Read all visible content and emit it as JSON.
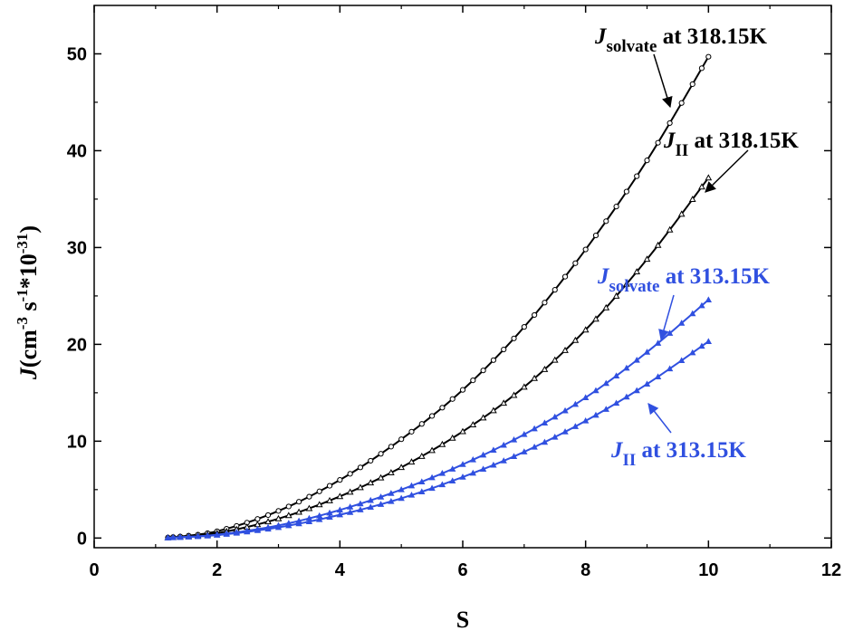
{
  "chart_data": {
    "type": "line",
    "title": "",
    "xlabel": "S",
    "ylabel": {
      "main": "J",
      "units_open": "(cm",
      "exp1": "-3",
      "mid1": " s",
      "exp2": "-1",
      "mid2": "*10",
      "exp3": "-31",
      "units_close": ")"
    },
    "xlim": [
      0,
      12
    ],
    "ylim": [
      -1,
      55
    ],
    "xticks": [
      0,
      2,
      4,
      6,
      8,
      10,
      12
    ],
    "yticks": [
      0,
      10,
      20,
      30,
      40,
      50
    ],
    "grid": false,
    "legend": "none",
    "series": [
      {
        "id": "solvate_318",
        "color": "#000000",
        "marker": "circle-open",
        "x": [
          1.2,
          2,
          3,
          4,
          5,
          6,
          7,
          8,
          9,
          10
        ],
        "y": [
          0.05,
          0.7,
          2.8,
          6.0,
          10.2,
          15.3,
          21.8,
          29.8,
          39.0,
          49.7
        ]
      },
      {
        "id": "II_318",
        "color": "#000000",
        "marker": "triangle-open",
        "x": [
          1.2,
          2,
          3,
          4,
          5,
          6,
          7,
          8,
          9,
          10
        ],
        "y": [
          0.04,
          0.5,
          2.0,
          4.3,
          7.3,
          11.0,
          15.6,
          21.5,
          28.8,
          37.2
        ]
      },
      {
        "id": "solvate_313",
        "color": "#3050e0",
        "marker": "triangle-filled",
        "x": [
          1.2,
          2,
          3,
          4,
          5,
          6,
          7,
          8,
          9,
          10
        ],
        "y": [
          0.03,
          0.35,
          1.3,
          2.9,
          5.0,
          7.6,
          10.7,
          14.5,
          19.2,
          24.6
        ]
      },
      {
        "id": "II_313",
        "color": "#3050e0",
        "marker": "triangle-filled",
        "x": [
          1.2,
          2,
          3,
          4,
          5,
          6,
          7,
          8,
          9,
          10
        ],
        "y": [
          0.02,
          0.3,
          1.1,
          2.4,
          4.1,
          6.3,
          8.9,
          12.1,
          15.9,
          20.3
        ]
      }
    ],
    "annotations": [
      {
        "id": "solvate_318",
        "main": "J",
        "sub": "solvate",
        "rest": " at 318.15K",
        "color": "#000000"
      },
      {
        "id": "II_318",
        "main": "J",
        "sub": "II",
        "rest": " at 318.15K",
        "color": "#000000"
      },
      {
        "id": "solvate_313",
        "main": "J",
        "sub": "solvate",
        "rest": " at 313.15K",
        "color": "#3050e0"
      },
      {
        "id": "II_313",
        "main": "J",
        "sub": "II",
        "rest": " at 313.15K",
        "color": "#3050e0"
      }
    ]
  }
}
